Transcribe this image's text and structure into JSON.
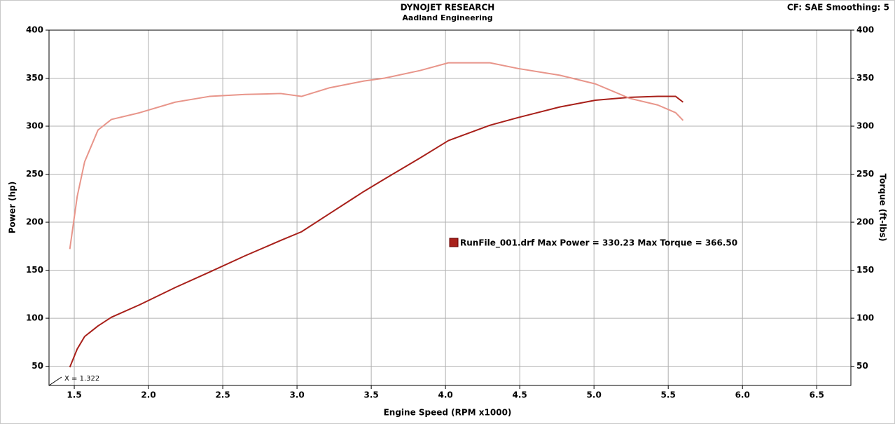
{
  "chart_data": {
    "type": "line",
    "title": "DYNOJET RESEARCH",
    "subtitle": "Aadland Engineering",
    "header_right": "CF: SAE  Smoothing: 5",
    "x_label": "Engine Speed (RPM x1000)",
    "y_label": "Power (hp)",
    "y2_label": "Torque (ft-lbs)",
    "legend_text": "RunFile_001.drf Max Power = 330.23 Max Torque = 366.50",
    "cursor_label": "X = 1.322",
    "grid": true,
    "xlim": [
      1.33,
      6.73
    ],
    "ylim": [
      30,
      400
    ],
    "y2lim": [
      30,
      400
    ],
    "xticks": [
      1.5,
      {
        "value": 2,
        "label": "2.0"
      },
      2.5,
      {
        "value": 3,
        "label": "3.0"
      },
      3.5,
      {
        "value": 4,
        "label": "4.0"
      },
      4.5,
      {
        "value": 5,
        "label": "5.0"
      },
      5.5,
      {
        "value": 6,
        "label": "6.0"
      },
      6.5
    ],
    "yticks": [
      50,
      100,
      150,
      200,
      250,
      300,
      350,
      400
    ],
    "y2ticks": [
      50,
      100,
      150,
      200,
      250,
      300,
      350,
      400
    ],
    "x": [
      1.47,
      1.52,
      1.57,
      1.66,
      1.75,
      1.94,
      2.18,
      2.41,
      2.65,
      2.89,
      3.03,
      3.22,
      3.45,
      3.59,
      3.83,
      4.02,
      4.3,
      4.49,
      4.77,
      5.01,
      5.24,
      5.43,
      5.55,
      5.6
    ],
    "series": [
      {
        "color": "#a8201a",
        "values": [
          49,
          68,
          81,
          92,
          101,
          114,
          132,
          148,
          165,
          181,
          190,
          209,
          232,
          245,
          267,
          285,
          301,
          309,
          320,
          327,
          330,
          331,
          331,
          325
        ]
      },
      {
        "color": "#e8958a",
        "axis": "y2",
        "values": [
          172,
          227,
          263,
          296,
          307,
          314,
          325,
          331,
          333,
          334,
          331,
          340,
          347,
          350,
          358,
          366,
          366,
          360,
          353,
          344,
          329,
          322,
          314,
          306
        ]
      }
    ]
  }
}
